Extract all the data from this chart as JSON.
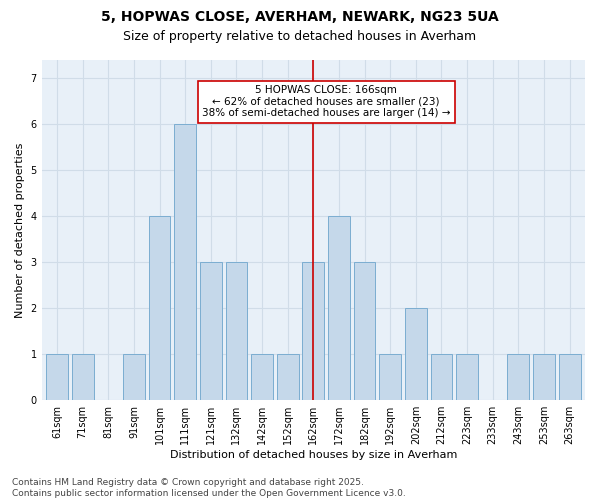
{
  "title1": "5, HOPWAS CLOSE, AVERHAM, NEWARK, NG23 5UA",
  "title2": "Size of property relative to detached houses in Averham",
  "xlabel": "Distribution of detached houses by size in Averham",
  "ylabel": "Number of detached properties",
  "categories": [
    "61sqm",
    "71sqm",
    "81sqm",
    "91sqm",
    "101sqm",
    "111sqm",
    "121sqm",
    "132sqm",
    "142sqm",
    "152sqm",
    "162sqm",
    "172sqm",
    "182sqm",
    "192sqm",
    "202sqm",
    "212sqm",
    "223sqm",
    "233sqm",
    "243sqm",
    "253sqm",
    "263sqm"
  ],
  "values": [
    1,
    1,
    0,
    1,
    4,
    6,
    3,
    3,
    1,
    1,
    3,
    4,
    3,
    1,
    2,
    1,
    1,
    0,
    1,
    1,
    1
  ],
  "bar_color": "#c5d8ea",
  "bar_edgecolor": "#7badd1",
  "bar_linewidth": 0.7,
  "vline_x_index": 10,
  "vline_color": "#cc0000",
  "vline_linewidth": 1.2,
  "annotation_line1": "5 HOPWAS CLOSE: 166sqm",
  "annotation_line2": "← 62% of detached houses are smaller (23)",
  "annotation_line3": "38% of semi-detached houses are larger (14) →",
  "annotation_box_color": "#ffffff",
  "annotation_border_color": "#cc0000",
  "annotation_fontsize": 7.5,
  "yticks": [
    0,
    1,
    2,
    3,
    4,
    5,
    6,
    7
  ],
  "ylim": [
    0,
    7.4
  ],
  "grid_color": "#d0dce8",
  "background_color": "#ffffff",
  "plot_bg_color": "#e8f0f8",
  "footer_text": "Contains HM Land Registry data © Crown copyright and database right 2025.\nContains public sector information licensed under the Open Government Licence v3.0.",
  "title_fontsize": 10,
  "subtitle_fontsize": 9,
  "axis_label_fontsize": 8,
  "tick_fontsize": 7,
  "footer_fontsize": 6.5
}
